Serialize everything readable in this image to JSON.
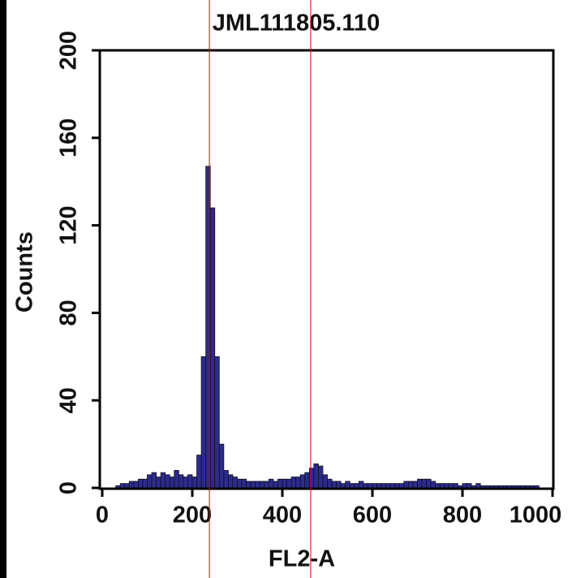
{
  "chart_data": {
    "type": "histogram",
    "title": "JML111805.110",
    "x_label": "FL2-A",
    "y_label": "Counts",
    "bins": [
      0,
      10,
      20,
      30,
      40,
      50,
      60,
      70,
      80,
      90,
      100,
      110,
      120,
      130,
      140,
      150,
      160,
      170,
      180,
      190,
      200,
      210,
      220,
      230,
      240,
      250,
      260,
      270,
      280,
      290,
      300,
      310,
      320,
      330,
      340,
      350,
      360,
      370,
      380,
      390,
      400,
      410,
      420,
      430,
      440,
      450,
      460,
      470,
      480,
      490,
      500,
      510,
      520,
      530,
      540,
      550,
      560,
      570,
      580,
      590,
      600,
      610,
      620,
      630,
      640,
      650,
      660,
      670,
      680,
      690,
      700,
      710,
      720,
      730,
      740,
      750,
      760,
      770,
      780,
      790,
      800,
      810,
      820,
      830,
      840,
      850,
      860,
      870,
      880,
      890,
      900,
      910,
      920,
      930,
      940,
      950,
      960,
      970,
      980,
      990,
      1000
    ],
    "counts": [
      0,
      0,
      0,
      1,
      2,
      2,
      3,
      3,
      4,
      4,
      6,
      7,
      5,
      7,
      6,
      5,
      8,
      6,
      5,
      6,
      5,
      15,
      60,
      147,
      128,
      60,
      20,
      8,
      6,
      5,
      4,
      4,
      3,
      3,
      3,
      3,
      3,
      4,
      3,
      4,
      4,
      4,
      5,
      5,
      6,
      7,
      9,
      11,
      10,
      6,
      4,
      3,
      3,
      2,
      3,
      2,
      2,
      3,
      2,
      2,
      2,
      2,
      2,
      2,
      2,
      2,
      2,
      3,
      3,
      3,
      4,
      4,
      4,
      3,
      2,
      2,
      2,
      2,
      2,
      1,
      2,
      2,
      1,
      2,
      1,
      1,
      1,
      1,
      1,
      1,
      1,
      1,
      1,
      1,
      1,
      1,
      1,
      0,
      0,
      0
    ],
    "color": "#2b2b8f",
    "marker_color": "#e00000",
    "markers": [
      238,
      463
    ],
    "xlim": [
      0,
      1000
    ],
    "xticks": [
      0,
      200,
      400,
      600,
      800,
      1000
    ],
    "ylim": [
      0,
      200
    ],
    "yticks": [
      0,
      40,
      80,
      120,
      160,
      200
    ]
  }
}
